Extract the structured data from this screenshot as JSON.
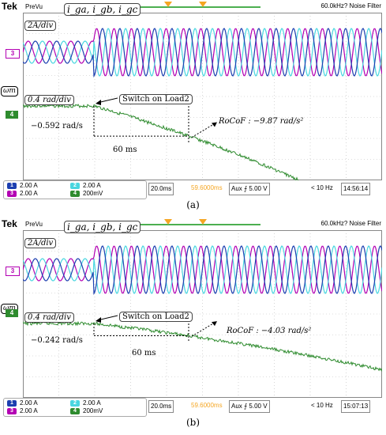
{
  "panels": [
    {
      "id": "a",
      "brand": "Tek",
      "mode": "PreVu",
      "filter": "60.0kHz? Noise Filter",
      "current_label": "i_ga, i_gb, i_gc",
      "current_scale": "2A/div",
      "ch3_marker": "3",
      "speed_symbol": "ωm",
      "speed_scale": "0.4 rad/div",
      "ch4_marker": "4",
      "switch_label": "Switch on Load2",
      "drop_label": "−0.592 rad/s",
      "interval_label": "60 ms",
      "rocof_label": "RoCoF : −9.87 rad/s²",
      "slope_rate": 9.87,
      "footer": {
        "ch1": "2.00 A",
        "ch2": "2.00 A",
        "ch3": "2.00 A",
        "ch4": "200mV",
        "ch1_num": "1",
        "ch2_num": "2",
        "ch3_num": "3",
        "ch4_num": "4",
        "timebase": "20.0ms",
        "position": "59.6000ms",
        "trigger": "Aux  ⨍ 5.00 V",
        "bandwidth": "< 10 Hz",
        "clock": "14:56:14"
      },
      "caption": "(a)"
    },
    {
      "id": "b",
      "brand": "Tek",
      "mode": "PreVu",
      "filter": "60.0kHz? Noise Filter",
      "current_label": "i_ga, i_gb, i_gc",
      "current_scale": "2A/div",
      "ch3_marker": "3",
      "speed_symbol": "ωm",
      "speed_scale": "0.4 rad/div",
      "ch4_marker": "4",
      "switch_label": "Switch on Load2",
      "drop_label": "−0.242 rad/s",
      "interval_label": "60 ms",
      "rocof_label": "RoCoF : −4.03 rad/s²",
      "slope_rate": 4.03,
      "footer": {
        "ch1": "2.00 A",
        "ch2": "2.00 A",
        "ch3": "2.00 A",
        "ch4": "200mV",
        "ch1_num": "1",
        "ch2_num": "2",
        "ch3_num": "3",
        "ch4_num": "4",
        "timebase": "20.0ms",
        "position": "59.6000ms",
        "trigger": "Aux  ⨍ 5.00 V",
        "bandwidth": "< 10 Hz",
        "clock": "15:07:13"
      },
      "caption": "(b)"
    }
  ],
  "colors": {
    "phase_a": "#b300b3",
    "phase_b": "#49d6e0",
    "phase_c": "#1c3fb0",
    "speed": "#2e8b2e",
    "trigger": "#f5a623"
  }
}
